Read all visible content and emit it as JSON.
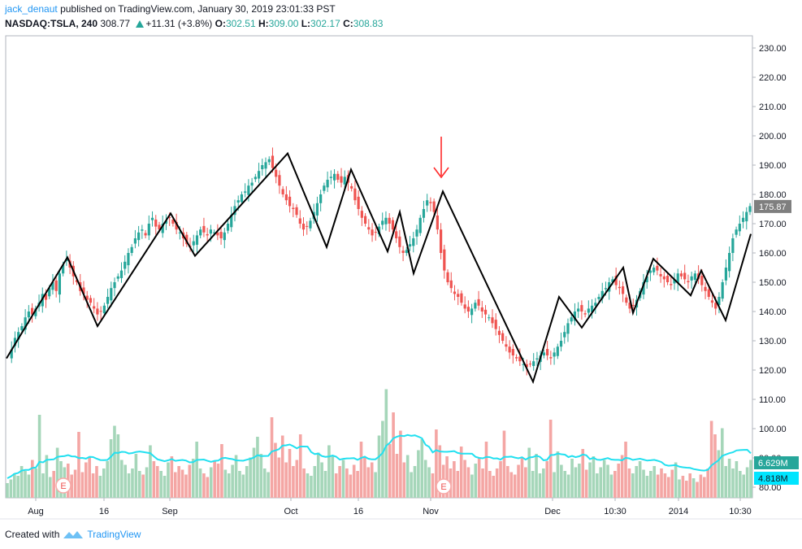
{
  "header": {
    "author": "jack_denaut",
    "published_text": "published on TradingView.com, January 30, 2019 23:01:33 PST",
    "symbol": "NASDAQ:TSLA, 240",
    "last": "308.77",
    "change": "+11.31 (+3.8%)",
    "o_label": "O:",
    "o": "302.51",
    "h_label": "H:",
    "h": "309.00",
    "l_label": "L:",
    "l": "302.17",
    "c_label": "C:",
    "c": "308.83"
  },
  "footer": {
    "created_with": "Created with",
    "brand": "TradingView"
  },
  "colors": {
    "up": "#26a69a",
    "down": "#ef5350",
    "volume_up": "#a5d6b9",
    "volume_down": "#f4a6a4",
    "volume_ma": "#22e0f0",
    "zigzag": "#000000",
    "arrow": "#ff2a2a",
    "price_label": "#7f7f7f",
    "vol_label_green": "#26a69a",
    "vol_label_cyan": "#00e5ff"
  },
  "chart_data": {
    "type": "candlestick",
    "y_axis": {
      "min": 80,
      "max": 230,
      "ticks": [
        "230.00",
        "220.00",
        "210.00",
        "200.00",
        "190.00",
        "180.00",
        "170.00",
        "160.00",
        "150.00",
        "140.00",
        "130.00",
        "120.00",
        "110.00",
        "100.00",
        "90.00",
        "80.00"
      ]
    },
    "x_axis": {
      "ticks": [
        "Aug",
        "16",
        "Sep",
        "Oct",
        "16",
        "Nov",
        "Dec",
        "10:30",
        "2014",
        "10:30"
      ]
    },
    "last_price_label": "175.87",
    "volume_labels": [
      "6.629M",
      "4.818M"
    ],
    "zigzag": [
      124,
      158.5,
      135,
      173.5,
      159,
      194,
      162,
      188.5,
      160.5,
      174,
      153,
      181,
      116,
      145,
      134.5,
      155,
      139.5,
      158,
      145.5,
      154,
      137,
      166.5
    ],
    "price_path": [
      124,
      127,
      131,
      133,
      135,
      138,
      140,
      139,
      141,
      143,
      146,
      144,
      148,
      150,
      147,
      153,
      156,
      158,
      155,
      152,
      150,
      147,
      146,
      144,
      143,
      141,
      139,
      140,
      142,
      145,
      148,
      150,
      152,
      154,
      157,
      160,
      162,
      165,
      167,
      168,
      166,
      170,
      172,
      169,
      168,
      170,
      171,
      172,
      170,
      168,
      167,
      165,
      163,
      162,
      164,
      166,
      168,
      167,
      166,
      168,
      167,
      166,
      165,
      167,
      170,
      173,
      176,
      178,
      180,
      181,
      183,
      184,
      186,
      188,
      190,
      191,
      192,
      189,
      186,
      183,
      180,
      178,
      176,
      175,
      173,
      170,
      168,
      169,
      171,
      174,
      177,
      180,
      183,
      185,
      186,
      187,
      185,
      184,
      186,
      184,
      182,
      178,
      175,
      172,
      170,
      168,
      166,
      167,
      169,
      171,
      172,
      170,
      168,
      165,
      162,
      160,
      161,
      163,
      165,
      168,
      172,
      175,
      178,
      177,
      174,
      168,
      160,
      154,
      150,
      148,
      146,
      145,
      143,
      141,
      140,
      141,
      143,
      142,
      140,
      139,
      138,
      136,
      134,
      132,
      130,
      128,
      126,
      125,
      124,
      123,
      122,
      121,
      122,
      123,
      124,
      125,
      126,
      125,
      124,
      126,
      128,
      130,
      133,
      136,
      138,
      140,
      141,
      140,
      139,
      141,
      142,
      143,
      145,
      147,
      148,
      150,
      151,
      149,
      148,
      146,
      143,
      141,
      142,
      144,
      147,
      150,
      152,
      154,
      155,
      154,
      152,
      151,
      150,
      149,
      151,
      153,
      152,
      151,
      150,
      152,
      153,
      151,
      149,
      147,
      145,
      143,
      141,
      145,
      150,
      155,
      160,
      165,
      168,
      170,
      172,
      174,
      176
    ],
    "volume_path": [
      1.2,
      1.5,
      2.0,
      1.8,
      2.6,
      2.2,
      1.9,
      3.1,
      2.4,
      6.8,
      2.0,
      3.5,
      1.7,
      2.2,
      4.1,
      3.0,
      2.5,
      2.8,
      1.9,
      2.3,
      5.4,
      2.1,
      2.9,
      3.3,
      2.0,
      2.6,
      1.8,
      2.4,
      3.0,
      4.8,
      5.9,
      5.2,
      3.1,
      2.7,
      2.0,
      2.4,
      3.6,
      2.2,
      1.9,
      2.5,
      4.3,
      3.0,
      2.6,
      2.2,
      1.8,
      2.9,
      3.4,
      2.1,
      2.6,
      2.3,
      1.9,
      2.7,
      3.2,
      4.6,
      2.4,
      2.0,
      1.7,
      2.5,
      3.0,
      2.8,
      4.4,
      2.3,
      2.0,
      2.7,
      3.5,
      2.2,
      1.9,
      2.6,
      3.3,
      4.1,
      5.0,
      3.6,
      2.4,
      2.1,
      6.6,
      4.5,
      3.3,
      5.1,
      2.9,
      4.0,
      2.6,
      3.1,
      5.2,
      2.4,
      2.0,
      1.8,
      2.6,
      3.7,
      2.9,
      2.2,
      4.3,
      3.5,
      2.0,
      2.6,
      3.1,
      2.4,
      1.9,
      2.7,
      2.2,
      4.6,
      3.3,
      2.5,
      2.9,
      2.1,
      5.1,
      6.3,
      8.9,
      4.4,
      7.0,
      3.6,
      5.5,
      2.9,
      3.5,
      2.1,
      2.6,
      3.9,
      4.8,
      3.1,
      2.5,
      2.0,
      5.6,
      4.3,
      2.7,
      3.4,
      2.4,
      3.0,
      2.2,
      4.2,
      3.1,
      2.5,
      1.9,
      2.8,
      3.3,
      2.4,
      4.6,
      2.2,
      1.8,
      2.4,
      3.0,
      5.5,
      2.6,
      2.1,
      1.9,
      2.7,
      3.3,
      2.5,
      4.1,
      2.2,
      3.6,
      2.0,
      2.4,
      3.0,
      6.4,
      2.1,
      3.8,
      2.7,
      2.2,
      1.9,
      3.2,
      2.5,
      2.8,
      4.0,
      2.3,
      2.9,
      3.4,
      2.0,
      2.5,
      3.1,
      2.7,
      1.9,
      2.2,
      2.8,
      3.5,
      4.6,
      2.4,
      2.0,
      2.6,
      3.0,
      2.3,
      1.8,
      2.2,
      2.6,
      1.9,
      2.4,
      2.0,
      1.7,
      2.3,
      2.9,
      1.5,
      1.8,
      1.4,
      2.0,
      1.6,
      1.3,
      1.9,
      1.7,
      2.4,
      6.3,
      5.2,
      3.9,
      5.7,
      2.6,
      3.2,
      2.4,
      3.0,
      2.2,
      1.9,
      2.5,
      3.1
    ]
  }
}
